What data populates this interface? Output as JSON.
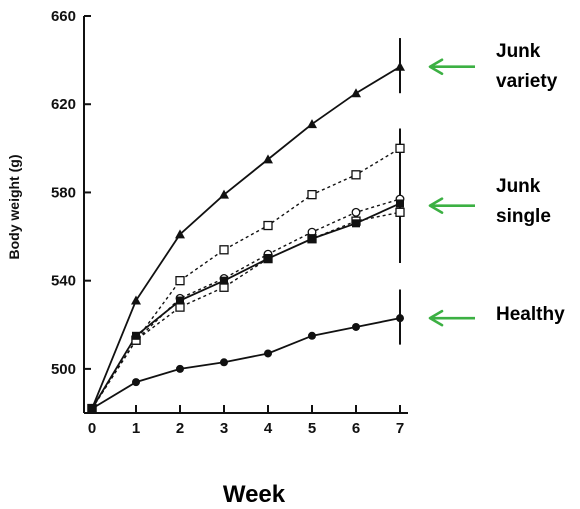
{
  "chart_data": {
    "type": "line",
    "title": "",
    "xlabel": "Week",
    "ylabel": "Body weight (g)",
    "x": [
      0,
      1,
      2,
      3,
      4,
      5,
      6,
      7
    ],
    "xlim": [
      0,
      7
    ],
    "ylim": [
      480,
      660
    ],
    "xticks": [
      "0",
      "1",
      "2",
      "3",
      "4",
      "5",
      "6",
      "7"
    ],
    "yticks": [
      "500",
      "540",
      "580",
      "620",
      "660"
    ],
    "grid": false,
    "series": [
      {
        "marker": "filled-triangle",
        "dash": "solid",
        "values": [
          482,
          531,
          561,
          579,
          595,
          611,
          625,
          637
        ]
      },
      {
        "marker": "open-square",
        "dash": "dashed",
        "values": [
          482,
          513,
          540,
          554,
          565,
          579,
          588,
          600
        ]
      },
      {
        "marker": "open-circle",
        "dash": "dashed",
        "values": [
          482,
          513,
          532,
          541,
          552,
          562,
          571,
          577
        ]
      },
      {
        "marker": "open-square",
        "dash": "dashed",
        "values": [
          482,
          513,
          528,
          537,
          550,
          559,
          567,
          571
        ]
      },
      {
        "marker": "filled-square",
        "dash": "solid",
        "values": [
          482,
          515,
          531,
          540,
          550,
          559,
          566,
          575
        ]
      },
      {
        "marker": "filled-circle",
        "dash": "solid",
        "values": [
          482,
          494,
          500,
          503,
          507,
          515,
          519,
          523
        ]
      }
    ],
    "error_bars": [
      {
        "x": 7,
        "low": 625,
        "high": 650
      },
      {
        "x": 7,
        "low": 548,
        "high": 609
      },
      {
        "x": 7,
        "low": 511,
        "high": 536
      }
    ],
    "annotations": [
      {
        "lines": [
          "Junk",
          "variety"
        ],
        "arrow_color": "#3cb043",
        "points_to": 637
      },
      {
        "lines": [
          "Junk",
          "single"
        ],
        "arrow_color": "#3cb043",
        "points_to": 574
      },
      {
        "lines": [
          "Healthy"
        ],
        "arrow_color": "#3cb043",
        "points_to": 523
      }
    ]
  }
}
